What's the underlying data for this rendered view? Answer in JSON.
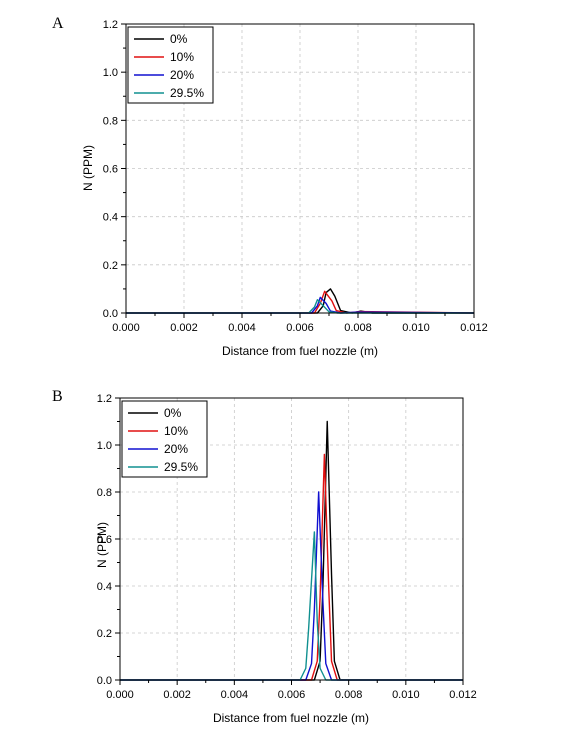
{
  "chart_data": [
    {
      "panel": "A",
      "type": "line",
      "xlabel": "Distance from fuel nozzle (m)",
      "ylabel": "N (PPM)",
      "xlim": [
        0,
        0.012
      ],
      "ylim": [
        0,
        1.2
      ],
      "xticks": [
        "0.000",
        "0.002",
        "0.004",
        "0.006",
        "0.008",
        "0.010",
        "0.012"
      ],
      "yticks": [
        "0.0",
        "0.2",
        "0.4",
        "0.6",
        "0.8",
        "1.0",
        "1.2"
      ],
      "grid": true,
      "legend": "top-left",
      "series": [
        {
          "name": "0%",
          "color": "#000000",
          "x": [
            0,
            0.0066,
            0.0068,
            0.0069,
            0.00705,
            0.0072,
            0.0074,
            0.0078,
            0.0081,
            0.0085,
            0.012
          ],
          "y": [
            0,
            0,
            0.03,
            0.085,
            0.1,
            0.07,
            0.01,
            0,
            0.008,
            0,
            0
          ]
        },
        {
          "name": "10%",
          "color": "#e01010",
          "x": [
            0,
            0.0065,
            0.0067,
            0.00685,
            0.0071,
            0.00725,
            0.0076,
            0.0081,
            0.012
          ],
          "y": [
            0,
            0,
            0.04,
            0.09,
            0.05,
            0.01,
            0,
            0.006,
            0
          ]
        },
        {
          "name": "20%",
          "color": "#1010d0",
          "x": [
            0,
            0.0064,
            0.0066,
            0.0067,
            0.0069,
            0.00705,
            0.0074,
            0.008,
            0.012
          ],
          "y": [
            0,
            0,
            0.03,
            0.065,
            0.04,
            0.008,
            0,
            0.004,
            0
          ]
        },
        {
          "name": "29.5%",
          "color": "#109090",
          "x": [
            0,
            0.0063,
            0.0065,
            0.0066,
            0.0068,
            0.007,
            0.0073,
            0.012
          ],
          "y": [
            0,
            0,
            0.025,
            0.055,
            0.03,
            0.005,
            0,
            0
          ]
        }
      ]
    },
    {
      "panel": "B",
      "type": "line",
      "xlabel": "Distance from fuel nozzle (m)",
      "ylabel": "N (PPM)",
      "xlim": [
        0,
        0.012
      ],
      "ylim": [
        0,
        1.2
      ],
      "xticks": [
        "0.000",
        "0.002",
        "0.004",
        "0.006",
        "0.008",
        "0.010",
        "0.012"
      ],
      "yticks": [
        "0.0",
        "0.2",
        "0.4",
        "0.6",
        "0.8",
        "1.0",
        "1.2"
      ],
      "grid": true,
      "legend": "top-left",
      "series": [
        {
          "name": "0%",
          "color": "#000000",
          "x": [
            0,
            0.0068,
            0.007,
            0.0071,
            0.00725,
            0.0074,
            0.0075,
            0.0077,
            0.012
          ],
          "y": [
            0,
            0,
            0.08,
            0.4,
            1.1,
            0.45,
            0.08,
            0,
            0
          ]
        },
        {
          "name": "10%",
          "color": "#e01010",
          "x": [
            0,
            0.0067,
            0.0069,
            0.007,
            0.00715,
            0.0073,
            0.0074,
            0.0076,
            0.012
          ],
          "y": [
            0,
            0,
            0.08,
            0.35,
            0.96,
            0.4,
            0.08,
            0,
            0
          ]
        },
        {
          "name": "20%",
          "color": "#1010d0",
          "x": [
            0,
            0.0065,
            0.0067,
            0.0068,
            0.00695,
            0.0071,
            0.0072,
            0.0074,
            0.012
          ],
          "y": [
            0,
            0,
            0.07,
            0.3,
            0.8,
            0.33,
            0.07,
            0,
            0
          ]
        },
        {
          "name": "29.5%",
          "color": "#109090",
          "x": [
            0,
            0.0063,
            0.0065,
            0.0066,
            0.0068,
            0.0069,
            0.007,
            0.0072,
            0.012
          ],
          "y": [
            0,
            0,
            0.05,
            0.22,
            0.63,
            0.25,
            0.05,
            0,
            0
          ]
        }
      ]
    }
  ]
}
